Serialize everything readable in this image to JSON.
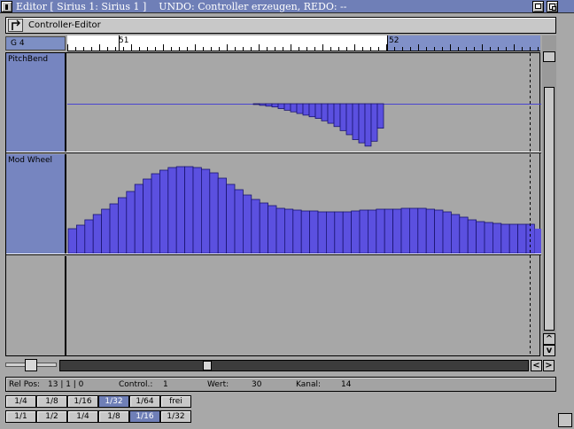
{
  "window": {
    "title": "Editor [ Sirius 1: Sirius 1 ]    UNDO: Controller erzeugen, REDO: --"
  },
  "toolbar": {
    "label": "Controller-Editor"
  },
  "ruler": {
    "note": "G 4",
    "bars": [
      "51",
      "52"
    ]
  },
  "lanes": [
    {
      "label": "PitchBend"
    },
    {
      "label": "Mod Wheel"
    },
    {
      "label": ""
    }
  ],
  "status": {
    "relpos_label": "Rel Pos:",
    "relpos_value": "13 | 1 | 0",
    "control_label": "Control.:",
    "control_value": "1",
    "wert_label": "Wert:",
    "wert_value": "30",
    "kanal_label": "Kanal:",
    "kanal_value": "14"
  },
  "quantize": {
    "row1": [
      "1/4",
      "1/8",
      "1/16",
      "1/32",
      "1/64",
      "frei"
    ],
    "row2": [
      "1/1",
      "1/2",
      "1/4",
      "1/8",
      "1/16",
      "1/32"
    ],
    "selected_row1": 3,
    "selected_row2": 4
  },
  "scrollbars": {
    "up": "^",
    "down": "v",
    "left": "<",
    "right": ">"
  },
  "controller_data": {
    "pitchbend_dips": [
      1,
      2,
      3,
      4,
      6,
      8,
      10,
      12,
      14,
      16,
      18,
      21,
      24,
      28,
      33,
      38,
      44,
      48,
      52,
      46,
      30
    ],
    "modwheel_levels": [
      28,
      32,
      38,
      44,
      50,
      56,
      63,
      70,
      78,
      84,
      90,
      94,
      97,
      98,
      98,
      97,
      95,
      91,
      85,
      78,
      72,
      66,
      61,
      57,
      54,
      51,
      50,
      49,
      48,
      48,
      47,
      47,
      47,
      47,
      48,
      49,
      49,
      50,
      50,
      50,
      51,
      51,
      51,
      50,
      49,
      47,
      44,
      41,
      38,
      36,
      35,
      34,
      33,
      33,
      33,
      33
    ],
    "modwheel_tail": 28,
    "colors": {
      "bar": "#5b50e0",
      "line": "#4a44d0"
    }
  }
}
